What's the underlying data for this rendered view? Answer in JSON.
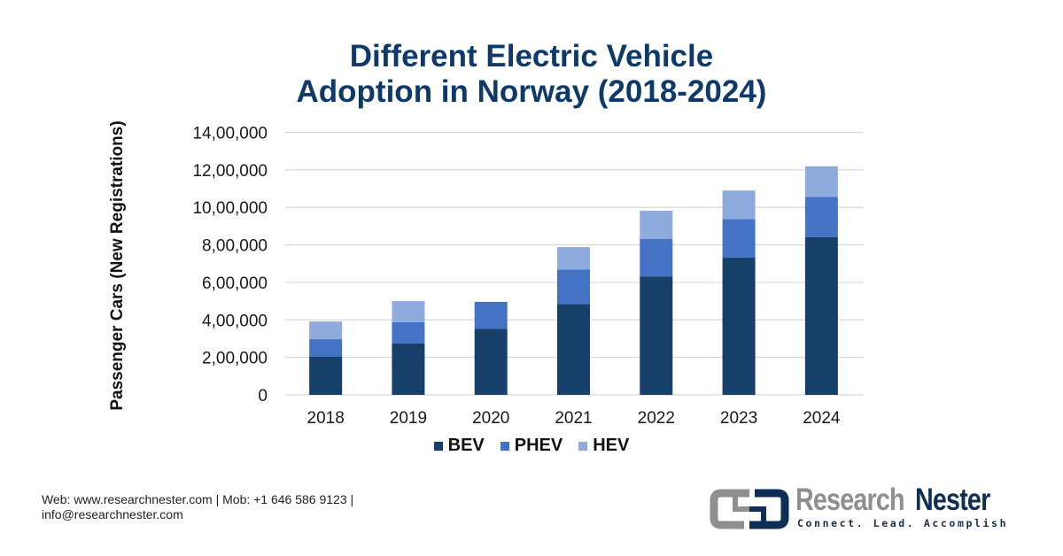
{
  "chart_data": {
    "type": "bar",
    "stacked": true,
    "title": "Different Electric Vehicle Adoption in Norway (2018-2024)",
    "title_lines": [
      "Different Electric Vehicle",
      "Adoption in Norway (2018-2024)"
    ],
    "xlabel": "",
    "ylabel": "Passenger Cars (New Registrations)",
    "ylim": [
      0,
      1400000
    ],
    "yticks": [
      0,
      200000,
      400000,
      600000,
      800000,
      1000000,
      1200000,
      1400000
    ],
    "ytick_labels": [
      "0",
      "2,00,000",
      "4,00,000",
      "6,00,000",
      "8,00,000",
      "10,00,000",
      "12,00,000",
      "14,00,000"
    ],
    "categories": [
      "2018",
      "2019",
      "2020",
      "2021",
      "2022",
      "2023",
      "2024"
    ],
    "series": [
      {
        "name": "BEV",
        "color": "#163f6a",
        "values": [
          203000,
          275000,
          353000,
          485000,
          632000,
          732000,
          842000
        ]
      },
      {
        "name": "PHEV",
        "color": "#4472c4",
        "values": [
          94000,
          113000,
          143000,
          184000,
          199000,
          205000,
          214000
        ]
      },
      {
        "name": "HEV",
        "color": "#8faadc",
        "values": [
          94000,
          112000,
          0,
          119000,
          151000,
          153000,
          163000
        ]
      }
    ],
    "grid": true,
    "legend_position": "bottom"
  },
  "footer": {
    "contact_line1": "Web: www.researchnester.com | Mob: +1 646 586 9123 |",
    "contact_line2": "info@researchnester.com"
  },
  "logo": {
    "word1": "Research",
    "word2": "Nester",
    "tagline": "Connect. Lead. Accomplish",
    "icon": "linked-squares-icon",
    "colors": {
      "gray": "#8f8f8f",
      "navy": "#0e2e55"
    }
  }
}
